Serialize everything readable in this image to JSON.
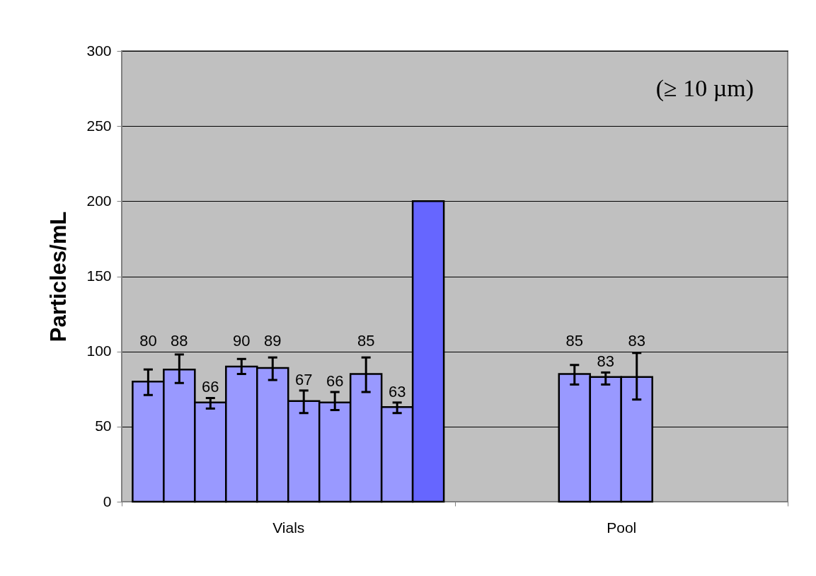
{
  "chart_data": {
    "type": "bar",
    "ylabel": "Particles/mL",
    "categories": [
      "Vials",
      "Pool"
    ],
    "series": [
      {
        "color": "#9999ff",
        "values": [
          80,
          null
        ],
        "errors": [
          [
            71,
            88
          ],
          null
        ],
        "value_labels": [
          "80",
          null
        ]
      },
      {
        "color": "#9999ff",
        "values": [
          88,
          null
        ],
        "errors": [
          [
            79,
            98
          ],
          null
        ],
        "value_labels": [
          "88",
          null
        ]
      },
      {
        "color": "#9999ff",
        "values": [
          66,
          null
        ],
        "errors": [
          [
            62,
            69
          ],
          null
        ],
        "value_labels": [
          "66",
          null
        ]
      },
      {
        "color": "#9999ff",
        "values": [
          90,
          85
        ],
        "errors": [
          [
            85,
            95
          ],
          [
            78,
            91
          ]
        ],
        "value_labels": [
          "90",
          "85"
        ]
      },
      {
        "color": "#9999ff",
        "values": [
          89,
          83
        ],
        "errors": [
          [
            81,
            96
          ],
          [
            78,
            86
          ]
        ],
        "value_labels": [
          "89",
          "83"
        ]
      },
      {
        "color": "#9999ff",
        "values": [
          67,
          83
        ],
        "errors": [
          [
            59,
            74
          ],
          [
            68,
            99
          ]
        ],
        "value_labels": [
          "67",
          "83"
        ]
      },
      {
        "color": "#9999ff",
        "values": [
          66,
          null
        ],
        "errors": [
          [
            61,
            73
          ],
          null
        ],
        "value_labels": [
          "66",
          null
        ]
      },
      {
        "color": "#9999ff",
        "values": [
          85,
          null
        ],
        "errors": [
          [
            73,
            96
          ],
          null
        ],
        "value_labels": [
          "85",
          null
        ]
      },
      {
        "color": "#9999ff",
        "values": [
          63,
          null
        ],
        "errors": [
          [
            59,
            66
          ],
          null
        ],
        "value_labels": [
          "63",
          null
        ]
      },
      {
        "color": "#6666ff",
        "values": [
          200,
          null
        ]
      }
    ],
    "ylim": [
      0,
      300
    ],
    "yticks": [
      0,
      50,
      100,
      150,
      200,
      250,
      300
    ],
    "grid": "y",
    "annotations": [
      "(≥ 10 µm)"
    ]
  }
}
